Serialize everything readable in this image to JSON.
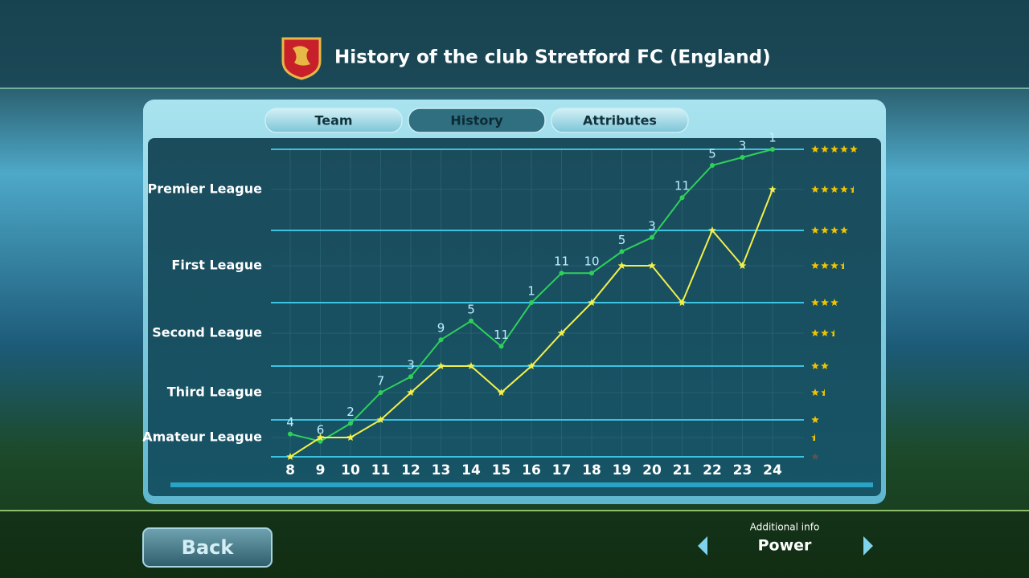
{
  "header": {
    "title": "History of the club Stretford FC (England)"
  },
  "tabs": [
    {
      "label": "Team"
    },
    {
      "label": "History",
      "active": true
    },
    {
      "label": "Attributes"
    }
  ],
  "chart_data": {
    "type": "line",
    "x": [
      8,
      9,
      10,
      11,
      12,
      13,
      14,
      15,
      16,
      17,
      18,
      19,
      20,
      21,
      22,
      23,
      24
    ],
    "xlim": [
      8,
      24
    ],
    "ylim": [
      0,
      5
    ],
    "yticks": [
      0,
      0.5,
      1,
      1.5,
      2,
      2.5,
      3,
      3.5,
      4,
      4.5,
      5
    ],
    "grid": true,
    "leagues": [
      {
        "value": 4.5,
        "label": "Premier League"
      },
      {
        "value": 3.5,
        "label": "First League"
      },
      {
        "value": 2.5,
        "label": "Second League"
      },
      {
        "value": 1.5,
        "label": "Third League"
      },
      {
        "value": 0.5,
        "label": "Amateur League"
      }
    ],
    "series": [
      {
        "color": "#2fd05a",
        "marker": "dot",
        "values": [
          0.6,
          0.4,
          0.9,
          1.5,
          1.8,
          2.4,
          2.7,
          2.3,
          3.0,
          3.4,
          3.4,
          3.7,
          3.9,
          4.4,
          4.8,
          4.9,
          5
        ],
        "positions": [
          "4",
          "6",
          "2",
          "7",
          "3",
          "9",
          "5",
          "11",
          "1",
          "11",
          "10",
          "5",
          "3",
          "11",
          "5",
          "3",
          "1"
        ]
      },
      {
        "color": "#f4f04a",
        "marker": "star",
        "values": [
          0,
          0.5,
          0.5,
          1,
          1.5,
          2,
          2,
          1.5,
          2,
          2.5,
          3,
          3.5,
          3.5,
          3,
          4,
          3.5,
          4.5
        ]
      }
    ]
  },
  "footer": {
    "back": "Back",
    "info_label": "Additional info",
    "info_value": "Power"
  }
}
